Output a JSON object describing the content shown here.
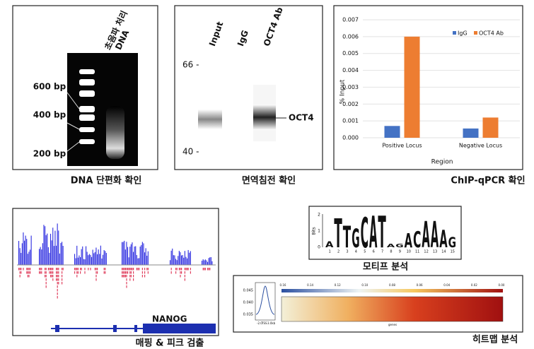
{
  "gel": {
    "lane_label": [
      "초음파 처리",
      "DNA"
    ],
    "markers": [
      "600 bp",
      "400 bp",
      "200 bp"
    ],
    "caption": "DNA 단편화 확인"
  },
  "western": {
    "lanes": [
      "Input",
      "IgG",
      "OCT4 Ab"
    ],
    "markers": [
      "66 -",
      "40 -"
    ],
    "band": "OCT4",
    "caption": "면역침전 확인"
  },
  "chart_data": {
    "type": "bar",
    "y_label": "% Input",
    "x_label": "Region",
    "categories": [
      "Positive Locus",
      "Negative Locus"
    ],
    "series": [
      {
        "name": "IgG",
        "color": "#4472c4",
        "values": [
          0.0007,
          0.00055
        ]
      },
      {
        "name": "OCT4 Ab",
        "color": "#ed7d31",
        "values": [
          0.006,
          0.0012
        ]
      }
    ],
    "ylim": [
      0,
      0.007
    ],
    "yticks": [
      {
        "value": 0,
        "label": "0.000"
      },
      0.001,
      0.002,
      0.003,
      0.004,
      0.005,
      0.006,
      0.007
    ],
    "grid": true,
    "legend": "top-right",
    "caption": "ChIP-qPCR 확인"
  },
  "tracks": {
    "gene": "NANOG",
    "caption": "매핑 & 피크 검출"
  },
  "motif": {
    "letters": [
      "A",
      "T",
      "T",
      "G",
      "C",
      "A",
      "T",
      "A",
      "G",
      "A",
      "C",
      "A",
      "A",
      "A",
      "G"
    ],
    "positions": [
      "1",
      "2",
      "3",
      "4",
      "5",
      "6",
      "7",
      "8",
      "9",
      "10",
      "11",
      "12",
      "13",
      "14",
      "15"
    ],
    "y_label": "Bits",
    "yticks": [
      "0",
      "1",
      "2"
    ],
    "caption": "모티프 분석"
  },
  "heatmap": {
    "colorbar_ticks": [
      "0.16",
      "0.14",
      "0.12",
      "0.10",
      "0.08",
      "0.06",
      "0.04",
      "0.02",
      "0.00"
    ],
    "profile_ticks": [
      "0.045",
      "0.040",
      "0.035"
    ],
    "profile_x": [
      "-2.0",
      "TSS",
      "3.0kb"
    ],
    "x_label": "genes",
    "caption": "히트맵 분석"
  }
}
